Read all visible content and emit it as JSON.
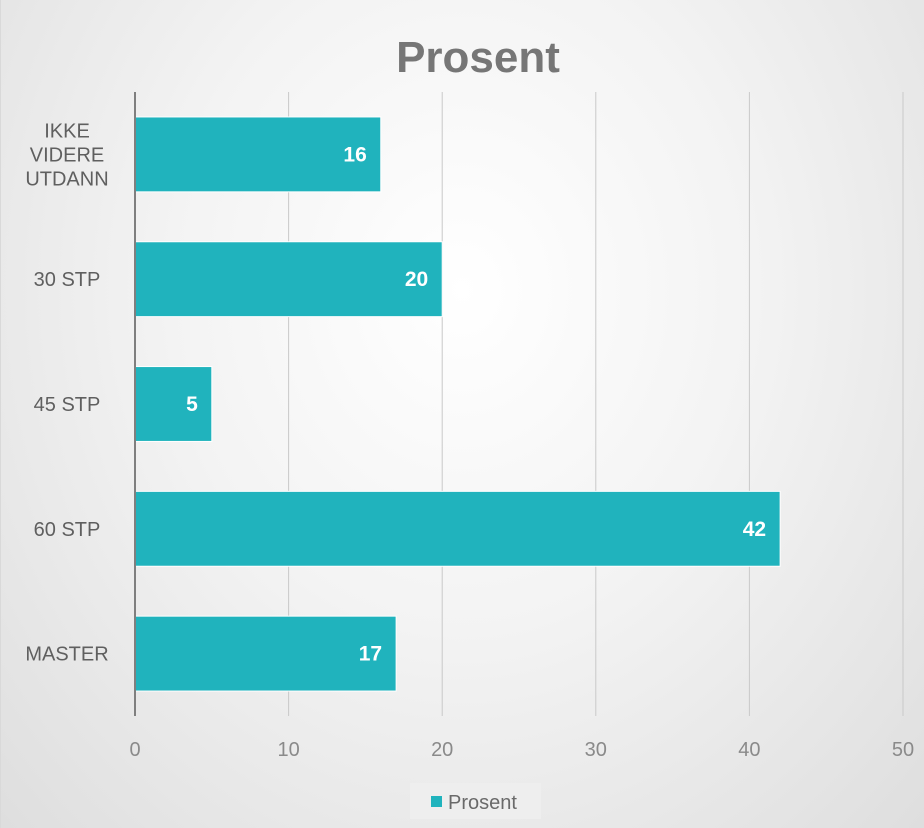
{
  "chart_data": {
    "type": "bar",
    "orientation": "horizontal",
    "title": "Prosent",
    "categories": [
      "IKKE VIDERE UTDANN",
      "30 STP",
      "45 STP",
      "60 STP",
      "MASTER"
    ],
    "category_lines": [
      [
        "IKKE",
        "VIDERE",
        "UTDANN"
      ],
      [
        "30 STP"
      ],
      [
        "45 STP"
      ],
      [
        "60 STP"
      ],
      [
        "MASTER"
      ]
    ],
    "series": [
      {
        "name": "Prosent",
        "values": [
          16,
          20,
          5,
          42,
          17
        ],
        "color": "#20b3bd"
      }
    ],
    "data_labels": [
      "16",
      "20",
      "5",
      "42",
      "17"
    ],
    "xlim": [
      0,
      50
    ],
    "xticks": [
      0,
      10,
      20,
      30,
      40,
      50
    ],
    "xtick_labels": [
      "0",
      "10",
      "20",
      "30",
      "40",
      "50"
    ],
    "xlabel": "",
    "ylabel": "",
    "grid": "vertical",
    "legend": {
      "position": "bottom",
      "entries": [
        "Prosent"
      ]
    }
  }
}
